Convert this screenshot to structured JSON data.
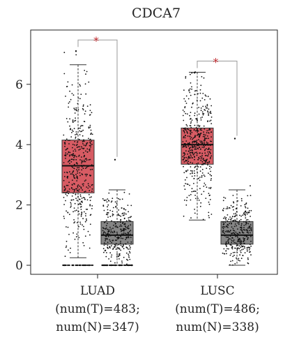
{
  "chart_data": {
    "type": "box",
    "title": "CDCA7",
    "xlabel": "",
    "ylabel": "",
    "ylim": [
      -0.3,
      7.8
    ],
    "yticks": [
      0,
      2,
      4,
      6
    ],
    "grid": false,
    "legend": "none",
    "colors": {
      "tumor": "#d75b63",
      "normal": "#858585",
      "points": "#111111",
      "significance": "#c0282d",
      "bracket": "#999999"
    },
    "groups": [
      {
        "label_lines": [
          "LUAD",
          "(num(T)=483;",
          "num(N)=347)"
        ],
        "significance": "*",
        "boxes": [
          {
            "series": "T",
            "n": 483,
            "whisker_low": 0.25,
            "q1": 2.4,
            "median": 3.3,
            "q3": 4.15,
            "whisker_high": 6.65,
            "max": 7.1,
            "zero_count": 40
          },
          {
            "series": "N",
            "n": 347,
            "whisker_low": 0.0,
            "q1": 0.7,
            "median": 1.0,
            "q3": 1.45,
            "whisker_high": 2.5,
            "max": 3.5,
            "zero_count": 60
          }
        ]
      },
      {
        "label_lines": [
          "LUSC",
          "(num(T)=486;",
          "num(N)=338)"
        ],
        "significance": "*",
        "boxes": [
          {
            "series": "T",
            "n": 486,
            "whisker_low": 1.5,
            "q1": 3.35,
            "median": 4.0,
            "q3": 4.55,
            "whisker_high": 6.4,
            "max": 6.4,
            "zero_count": 0
          },
          {
            "series": "N",
            "n": 338,
            "whisker_low": 0.0,
            "q1": 0.7,
            "median": 1.0,
            "q3": 1.45,
            "whisker_high": 2.5,
            "max": 4.2,
            "zero_count": 0
          }
        ]
      }
    ]
  }
}
